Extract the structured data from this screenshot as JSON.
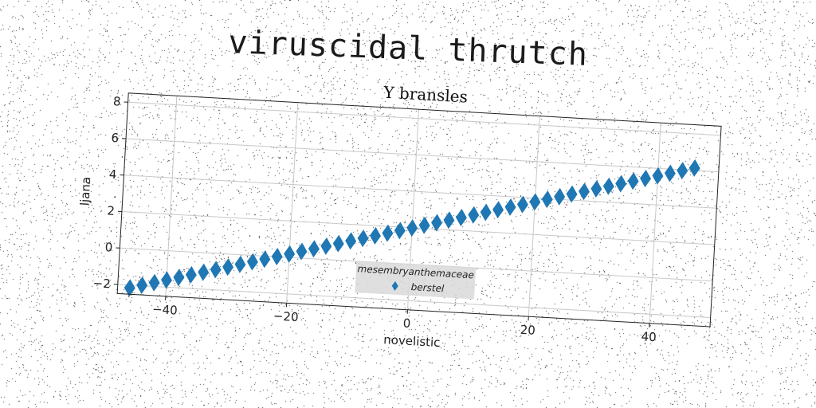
{
  "page": {
    "title": "viruscidal thrutch"
  },
  "chart_data": {
    "type": "scatter",
    "title": "Y bransles",
    "xlabel": "novelistic",
    "ylabel": "ljana",
    "xlim": [
      -48,
      50
    ],
    "ylim": [
      -2.5,
      8.5
    ],
    "xticks": [
      -40,
      -20,
      0,
      20,
      40
    ],
    "yticks": [
      -2,
      0,
      2,
      4,
      6,
      8
    ],
    "grid": true,
    "legend": {
      "title": "mesembryanthemaceae",
      "placement": "lower-center"
    },
    "marker": "diamond",
    "color": "#1f77b4",
    "series": [
      {
        "name": "berstel",
        "x": [
          -46,
          -44,
          -42,
          -40,
          -38,
          -36,
          -34,
          -32,
          -30,
          -28,
          -26,
          -24,
          -22,
          -20,
          -18,
          -16,
          -14,
          -12,
          -10,
          -8,
          -6,
          -4,
          -2,
          0,
          2,
          4,
          6,
          8,
          10,
          12,
          14,
          16,
          18,
          20,
          22,
          24,
          26,
          28,
          30,
          32,
          34,
          36,
          38,
          40,
          42,
          44,
          46
        ],
        "y": [
          -2.15,
          -1.97,
          -1.79,
          -1.61,
          -1.43,
          -1.25,
          -1.07,
          -0.89,
          -0.71,
          -0.53,
          -0.35,
          -0.17,
          0.01,
          0.19,
          0.37,
          0.55,
          0.73,
          0.91,
          1.09,
          1.27,
          1.45,
          1.63,
          1.81,
          1.99,
          2.17,
          2.35,
          2.53,
          2.71,
          2.89,
          3.07,
          3.25,
          3.43,
          3.61,
          3.79,
          3.97,
          4.15,
          4.33,
          4.51,
          4.69,
          4.87,
          5.05,
          5.23,
          5.41,
          5.59,
          5.77,
          5.95,
          6.13
        ]
      }
    ]
  }
}
